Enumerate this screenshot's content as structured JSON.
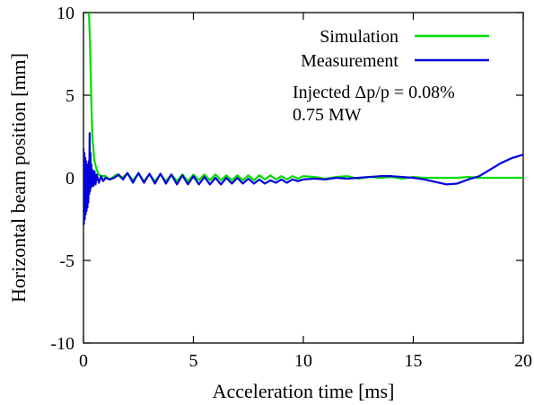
{
  "chart_data": {
    "type": "line",
    "xlabel": "Acceleration time [ms]",
    "ylabel": "Horizontal beam position [mm]",
    "xlim": [
      0,
      20
    ],
    "ylim": [
      -10,
      10
    ],
    "xticks": [
      "0",
      "5",
      "10",
      "15",
      "20"
    ],
    "yticks": [
      "10",
      "5",
      "0",
      "-5",
      "-10"
    ],
    "grid": false,
    "legend_position": "top-right",
    "annotations": [
      "Injected Δp/p = 0.08%",
      "0.75 MW"
    ],
    "series": [
      {
        "name": "Simulation",
        "color": "#00dd00",
        "x": [
          0.25,
          0.3,
          0.35,
          0.4,
          0.5,
          0.6,
          0.7,
          0.8,
          1.0,
          1.2,
          1.5,
          1.75,
          2.0,
          2.25,
          2.5,
          2.75,
          3.0,
          3.25,
          3.5,
          3.75,
          4.0,
          4.25,
          4.5,
          4.75,
          5.0,
          5.25,
          5.5,
          5.75,
          6.0,
          6.25,
          6.5,
          6.75,
          7.0,
          7.25,
          7.5,
          7.75,
          8.0,
          8.25,
          8.5,
          8.75,
          9.0,
          9.25,
          9.5,
          9.75,
          10.0,
          10.5,
          11.0,
          11.5,
          12.0,
          12.5,
          13.0,
          13.5,
          14.0,
          14.5,
          15.0,
          15.5,
          16.0,
          16.5,
          17.0,
          17.5,
          18.0,
          18.5,
          19.0,
          19.5,
          20.0
        ],
        "y": [
          10.0,
          8.0,
          5.0,
          2.5,
          1.0,
          0.5,
          0.2,
          0.1,
          0.1,
          -0.1,
          0.2,
          0.0,
          0.25,
          -0.15,
          0.25,
          -0.2,
          0.2,
          -0.2,
          0.2,
          -0.2,
          0.2,
          -0.2,
          0.2,
          -0.2,
          0.2,
          -0.15,
          0.2,
          -0.15,
          0.2,
          -0.15,
          0.15,
          -0.15,
          0.15,
          -0.15,
          0.15,
          -0.15,
          0.15,
          -0.1,
          0.15,
          -0.1,
          0.1,
          -0.1,
          0.1,
          -0.05,
          0.1,
          0.05,
          -0.05,
          0.05,
          0.1,
          -0.05,
          0.05,
          0.0,
          0.05,
          -0.05,
          0.05,
          0.0,
          0.0,
          0.0,
          0.0,
          0.05,
          0.0,
          0.0,
          0.0,
          0.0,
          0.0
        ]
      },
      {
        "name": "Measurement",
        "color": "#0000dd",
        "x": [
          0.0,
          0.02,
          0.04,
          0.06,
          0.08,
          0.1,
          0.12,
          0.14,
          0.16,
          0.18,
          0.2,
          0.22,
          0.24,
          0.26,
          0.28,
          0.3,
          0.32,
          0.34,
          0.36,
          0.38,
          0.4,
          0.45,
          0.5,
          0.55,
          0.6,
          0.7,
          0.8,
          0.9,
          1.0,
          1.2,
          1.4,
          1.6,
          1.8,
          2.0,
          2.25,
          2.5,
          2.75,
          3.0,
          3.25,
          3.5,
          3.75,
          4.0,
          4.25,
          4.5,
          4.75,
          5.0,
          5.25,
          5.5,
          5.75,
          6.0,
          6.25,
          6.5,
          6.75,
          7.0,
          7.25,
          7.5,
          7.75,
          8.0,
          8.25,
          8.5,
          8.75,
          9.0,
          9.25,
          9.5,
          9.75,
          10.0,
          10.5,
          11.0,
          11.5,
          12.0,
          12.5,
          13.0,
          13.5,
          14.0,
          14.5,
          15.0,
          15.5,
          16.0,
          16.5,
          17.0,
          17.5,
          18.0,
          18.5,
          19.0,
          19.5,
          20.0
        ],
        "y": [
          1.8,
          -2.8,
          1.5,
          -2.5,
          1.2,
          -2.2,
          1.0,
          -2.0,
          0.8,
          -1.8,
          0.6,
          -1.5,
          1.0,
          -1.0,
          2.7,
          -0.8,
          1.5,
          -0.6,
          0.8,
          -0.5,
          0.5,
          -0.5,
          0.4,
          -0.4,
          0.2,
          -0.3,
          0.1,
          -0.2,
          0.0,
          -0.1,
          0.0,
          0.2,
          -0.1,
          0.3,
          -0.3,
          0.3,
          -0.3,
          0.25,
          -0.35,
          0.25,
          -0.35,
          0.2,
          -0.4,
          0.15,
          -0.4,
          0.1,
          -0.4,
          0.05,
          -0.4,
          0.0,
          -0.4,
          0.0,
          -0.35,
          0.0,
          -0.35,
          -0.05,
          -0.35,
          -0.1,
          -0.35,
          -0.15,
          -0.3,
          -0.1,
          -0.3,
          -0.1,
          -0.2,
          -0.1,
          -0.05,
          -0.1,
          0.0,
          -0.05,
          0.0,
          0.05,
          0.1,
          0.1,
          0.05,
          0.0,
          -0.1,
          -0.25,
          -0.4,
          -0.35,
          -0.1,
          0.1,
          0.5,
          0.9,
          1.2,
          1.4
        ]
      }
    ]
  }
}
